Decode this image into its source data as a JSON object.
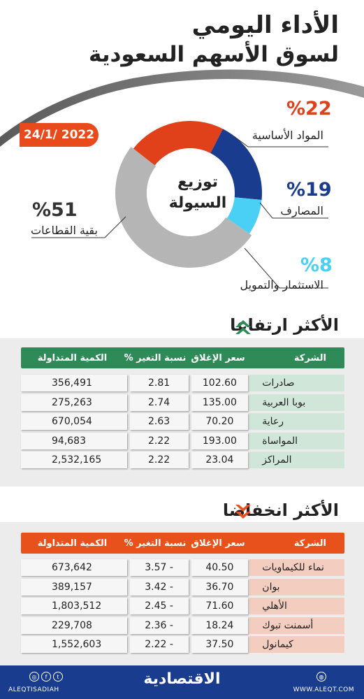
{
  "header": {
    "title_line1": "الأداء اليومي",
    "title_line2": "لسوق الأسهم السعودية",
    "date": "24/1/ 2022"
  },
  "liquidity": {
    "center_line1": "توزيع",
    "center_line2": "السيولة",
    "segments": [
      {
        "pct": "%22",
        "label": "المواد الأساسية",
        "value": 22,
        "color": "#e0401a"
      },
      {
        "pct": "%19",
        "label": "المصارف",
        "value": 19,
        "color": "#1a3c8f"
      },
      {
        "pct": "%8",
        "label": "الاستثمار والتمويل",
        "value": 8,
        "color": "#4ad0f5"
      },
      {
        "pct": "%51",
        "label": "بقية القطاعات",
        "value": 51,
        "color": "#b5b5b5"
      }
    ]
  },
  "gainers": {
    "title": "الأكثر ارتفاعا",
    "accent": "#2e8b57",
    "headers": {
      "company": "الشركة",
      "close": "سعر الإغلاق",
      "change": "نسبة التغير %",
      "volume": "الكمية المتداولة"
    },
    "rows": [
      {
        "company": "صادرات",
        "close": "102.60",
        "change": "2.81",
        "volume": "356,491"
      },
      {
        "company": "بوبا العربية",
        "close": "135.00",
        "change": "2.74",
        "volume": "275,263"
      },
      {
        "company": "رعاية",
        "close": "70.20",
        "change": "2.63",
        "volume": "670,054"
      },
      {
        "company": "المواساة",
        "close": "193.00",
        "change": "2.22",
        "volume": "94,683"
      },
      {
        "company": "المراكز",
        "close": "23.04",
        "change": "2.22",
        "volume": "2,532,165"
      }
    ]
  },
  "losers": {
    "title": "الأكثر انخفاضا",
    "accent": "#e8501c",
    "headers": {
      "company": "الشركة",
      "close": "سعر الإغلاق",
      "change": "نسبة التغير %",
      "volume": "الكمية المتداولة"
    },
    "rows": [
      {
        "company": "نماء للكيماويات",
        "close": "40.50",
        "change": "3.57 -",
        "volume": "673,642"
      },
      {
        "company": "بوان",
        "close": "36.70",
        "change": "3.42 -",
        "volume": "389,157"
      },
      {
        "company": "الأهلي",
        "close": "71.60",
        "change": "2.45 -",
        "volume": "1,803,512"
      },
      {
        "company": "أسمنت تبوك",
        "close": "18.24",
        "change": "2.36 -",
        "volume": "229,708"
      },
      {
        "company": "كيمانول",
        "close": "37.50",
        "change": "2.22 -",
        "volume": "1,552,603"
      }
    ]
  },
  "footer": {
    "handle": "ALEQTISADIAH",
    "logo": "الاقتصادية",
    "site": "WWW.ALEQT.COM"
  }
}
